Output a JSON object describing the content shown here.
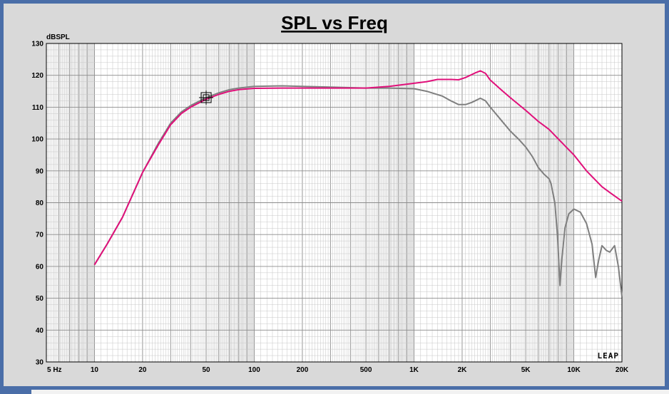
{
  "chart_data": {
    "type": "line",
    "title": "SPL vs Freq",
    "ylabel": "dBSPL",
    "xlabel": "",
    "x_scale": "log",
    "xlim": [
      5,
      20000
    ],
    "ylim": [
      30,
      130
    ],
    "y_ticks": [
      30,
      40,
      50,
      60,
      70,
      80,
      90,
      100,
      110,
      120,
      130
    ],
    "x_ticks": [
      {
        "value": 5,
        "label": "5 Hz"
      },
      {
        "value": 10,
        "label": "10"
      },
      {
        "value": 20,
        "label": "20"
      },
      {
        "value": 50,
        "label": "50"
      },
      {
        "value": 100,
        "label": "100"
      },
      {
        "value": 200,
        "label": "200"
      },
      {
        "value": 500,
        "label": "500"
      },
      {
        "value": 1000,
        "label": "1K"
      },
      {
        "value": 2000,
        "label": "2K"
      },
      {
        "value": 5000,
        "label": "5K"
      },
      {
        "value": 10000,
        "label": "10K"
      },
      {
        "value": 20000,
        "label": "20K"
      }
    ],
    "grid": true,
    "watermark": "LEAP",
    "marker": {
      "x": 50,
      "y": 113
    },
    "series": [
      {
        "color": "#e0107a",
        "points": [
          [
            10,
            60.5
          ],
          [
            12,
            67
          ],
          [
            15,
            75.5
          ],
          [
            20,
            89.5
          ],
          [
            25,
            98
          ],
          [
            30,
            104.5
          ],
          [
            35,
            108
          ],
          [
            40,
            110
          ],
          [
            50,
            112.5
          ],
          [
            60,
            114
          ],
          [
            70,
            115
          ],
          [
            80,
            115.5
          ],
          [
            100,
            115.9
          ],
          [
            150,
            116
          ],
          [
            200,
            116
          ],
          [
            300,
            116
          ],
          [
            500,
            116
          ],
          [
            700,
            116.5
          ],
          [
            1000,
            117.5
          ],
          [
            1200,
            118
          ],
          [
            1400,
            118.7
          ],
          [
            1700,
            118.7
          ],
          [
            1900,
            118.6
          ],
          [
            2100,
            119.3
          ],
          [
            2400,
            120.7
          ],
          [
            2600,
            121.4
          ],
          [
            2800,
            120.6
          ],
          [
            3000,
            118.5
          ],
          [
            3500,
            115.5
          ],
          [
            4000,
            113
          ],
          [
            5000,
            109
          ],
          [
            6000,
            105.5
          ],
          [
            7000,
            103
          ],
          [
            8000,
            100
          ],
          [
            10000,
            95
          ],
          [
            12000,
            90
          ],
          [
            15000,
            85
          ],
          [
            17000,
            83
          ],
          [
            20000,
            80.5
          ]
        ]
      },
      {
        "color": "#7f7f7f",
        "points": [
          [
            10,
            60.5
          ],
          [
            12,
            67
          ],
          [
            15,
            75.5
          ],
          [
            20,
            89.5
          ],
          [
            25,
            98.5
          ],
          [
            30,
            105
          ],
          [
            35,
            108.5
          ],
          [
            40,
            110.5
          ],
          [
            50,
            113
          ],
          [
            60,
            114.5
          ],
          [
            70,
            115.5
          ],
          [
            80,
            116
          ],
          [
            100,
            116.5
          ],
          [
            150,
            116.7
          ],
          [
            200,
            116.5
          ],
          [
            300,
            116.3
          ],
          [
            500,
            116
          ],
          [
            700,
            116
          ],
          [
            1000,
            115.8
          ],
          [
            1200,
            115
          ],
          [
            1500,
            113.5
          ],
          [
            1700,
            112
          ],
          [
            1900,
            110.8
          ],
          [
            2100,
            110.8
          ],
          [
            2300,
            111.5
          ],
          [
            2600,
            112.8
          ],
          [
            2800,
            112
          ],
          [
            3000,
            110
          ],
          [
            3500,
            106
          ],
          [
            4000,
            102.5
          ],
          [
            4500,
            100
          ],
          [
            5000,
            97.5
          ],
          [
            5500,
            94.5
          ],
          [
            6000,
            91
          ],
          [
            6500,
            89
          ],
          [
            7000,
            87.5
          ],
          [
            7200,
            86
          ],
          [
            7600,
            80
          ],
          [
            7900,
            70
          ],
          [
            8200,
            54
          ],
          [
            8400,
            62
          ],
          [
            8800,
            72
          ],
          [
            9300,
            76.5
          ],
          [
            10000,
            78
          ],
          [
            11000,
            77
          ],
          [
            12000,
            73.5
          ],
          [
            13000,
            67
          ],
          [
            13700,
            56.5
          ],
          [
            14300,
            62
          ],
          [
            15000,
            66.5
          ],
          [
            16000,
            65
          ],
          [
            16800,
            64.5
          ],
          [
            18000,
            66.5
          ],
          [
            19000,
            60
          ],
          [
            20000,
            50.5
          ]
        ]
      }
    ]
  }
}
